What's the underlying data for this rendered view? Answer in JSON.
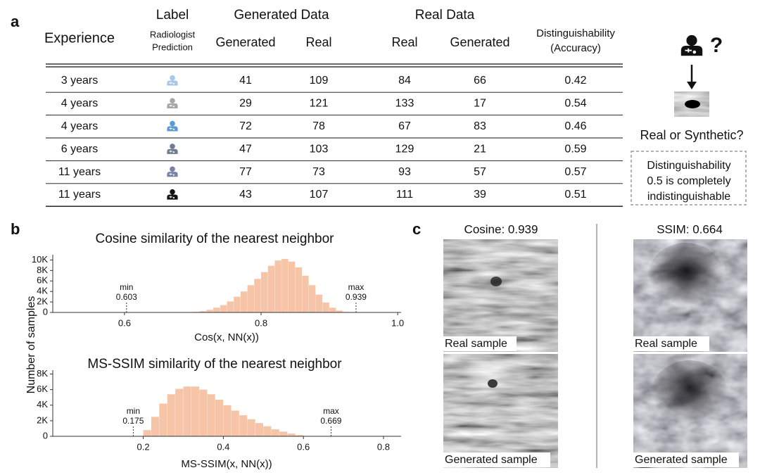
{
  "panel_labels": [
    "a",
    "b",
    "c"
  ],
  "table": {
    "group_headers": [
      "Label",
      "Generated Data",
      "Real Data"
    ],
    "columns": [
      "Experience",
      "Radiologist Prediction",
      "Generated",
      "Real",
      "Real",
      "Generated",
      "Distinguishability (Accuracy)"
    ],
    "column_lines": [
      [
        "Experience"
      ],
      [
        "Radiologist",
        "Prediction"
      ],
      [
        "Generated"
      ],
      [
        "Real"
      ],
      [
        "Real"
      ],
      [
        "Generated"
      ],
      [
        "Distinguishability",
        "(Accuracy)"
      ]
    ],
    "rows": [
      [
        "3 years",
        41,
        109,
        84,
        66,
        0.42
      ],
      [
        "4 years",
        29,
        121,
        133,
        17,
        0.54
      ],
      [
        "4 years",
        72,
        78,
        67,
        83,
        0.46
      ],
      [
        "6 years",
        47,
        103,
        129,
        21,
        0.59
      ],
      [
        "11 years",
        77,
        73,
        93,
        57,
        0.57
      ],
      [
        "11 years",
        43,
        107,
        111,
        39,
        0.51
      ]
    ],
    "icon_colors": [
      "#a9c6e6",
      "#a6a6a6",
      "#5b9bd5",
      "#6f7d94",
      "#7a82a3",
      "#111111"
    ]
  },
  "side_note": {
    "question_mark": "?",
    "question": "Real or Synthetic?",
    "box_lines": [
      "Distinguishability",
      "0.5 is completely",
      "indistinguishable"
    ]
  },
  "panel_b": {
    "ylabel": "Number of samples"
  },
  "chart_data": [
    {
      "type": "histogram",
      "title": "Cosine similarity of the nearest neighbor",
      "xlabel": "Cos(x, NN(x))",
      "color": "#f6c4a6",
      "bins": [
        0.7,
        0.71,
        0.72,
        0.73,
        0.74,
        0.75,
        0.76,
        0.77,
        0.78,
        0.79,
        0.8,
        0.81,
        0.82,
        0.83,
        0.84,
        0.85,
        0.86,
        0.87,
        0.88,
        0.89,
        0.9,
        0.91,
        0.92,
        0.93
      ],
      "counts": [
        100,
        250,
        500,
        900,
        1400,
        2100,
        3000,
        4000,
        5200,
        6400,
        7700,
        8900,
        9900,
        10200,
        9700,
        8600,
        7000,
        5200,
        3400,
        1900,
        900,
        350,
        100
      ],
      "xlim": [
        0.495,
        1.005
      ],
      "xticks": [
        0.6,
        0.8,
        {
          "value": 1,
          "label": "1.0"
        }
      ],
      "ylim": [
        0,
        11000
      ],
      "yticks": [
        0,
        {
          "value": 2000,
          "label": "2K"
        },
        {
          "value": 4000,
          "label": "4K"
        },
        {
          "value": 6000,
          "label": "6K"
        },
        {
          "value": 8000,
          "label": "8K"
        },
        {
          "value": 10000,
          "label": "10K"
        }
      ],
      "annotations": [
        {
          "label": "min",
          "value": 0.603
        },
        {
          "label": "max",
          "value": 0.939
        }
      ]
    },
    {
      "type": "histogram",
      "title": "MS-SSIM similarity of the nearest neighbor",
      "xlabel": "MS-SSIM(x, NN(x))",
      "color": "#f6c4a6",
      "bins": [
        0.2,
        0.22,
        0.24,
        0.26,
        0.28,
        0.3,
        0.32,
        0.34,
        0.36,
        0.38,
        0.4,
        0.42,
        0.44,
        0.46,
        0.48,
        0.5,
        0.52,
        0.54,
        0.56,
        0.58,
        0.6
      ],
      "counts": [
        800,
        2500,
        4200,
        5400,
        6100,
        6400,
        6400,
        6000,
        5400,
        4700,
        4000,
        3300,
        2700,
        2200,
        1700,
        1300,
        900,
        600,
        350,
        150
      ],
      "xlim": [
        -0.026,
        0.844
      ],
      "xticks": [
        0.2,
        0.4,
        0.6,
        0.8
      ],
      "ylim": [
        0,
        8500
      ],
      "yticks": [
        0,
        {
          "value": 2000,
          "label": "2K"
        },
        {
          "value": 4000,
          "label": "4K"
        },
        {
          "value": 6000,
          "label": "6K"
        },
        {
          "value": 8000,
          "label": "8K"
        }
      ],
      "annotations": [
        {
          "label": "min",
          "value": 0.175
        },
        {
          "label": "max",
          "value": 0.669
        }
      ]
    }
  ],
  "panel_c": {
    "titles": [
      "Cosine: 0.939",
      "SSIM: 0.664"
    ],
    "captions": [
      "Real sample",
      "Generated sample"
    ]
  }
}
